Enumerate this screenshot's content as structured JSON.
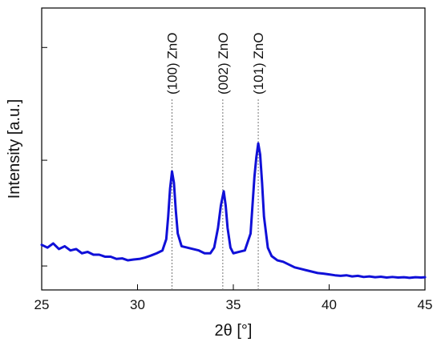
{
  "chart_data": {
    "type": "line",
    "title": "",
    "xlabel": "2θ [°]",
    "ylabel": "Intensity [a.u.]",
    "xlim": [
      25,
      45
    ],
    "ylim": [
      0,
      1
    ],
    "x_ticks": [
      25,
      30,
      35,
      40,
      45
    ],
    "x_tick_labels": [
      "25",
      "30",
      "35",
      "40",
      "45"
    ],
    "y_ticks": [
      0.085,
      0.46,
      0.86
    ],
    "y_tick_labels": [],
    "grid": false,
    "legend": "none",
    "series": [
      {
        "color": "#1010d8",
        "x": [
          25.0,
          25.3,
          25.6,
          25.9,
          26.2,
          26.5,
          26.8,
          27.1,
          27.4,
          27.7,
          28.0,
          28.3,
          28.6,
          28.9,
          29.2,
          29.5,
          29.8,
          30.1,
          30.4,
          30.7,
          31.0,
          31.3,
          31.5,
          31.6,
          31.7,
          31.8,
          31.9,
          32.0,
          32.1,
          32.3,
          32.6,
          32.9,
          33.2,
          33.5,
          33.8,
          34.0,
          34.2,
          34.35,
          34.5,
          34.6,
          34.7,
          34.85,
          35.0,
          35.3,
          35.6,
          35.9,
          36.0,
          36.1,
          36.2,
          36.3,
          36.4,
          36.5,
          36.6,
          36.8,
          37.0,
          37.3,
          37.6,
          37.9,
          38.2,
          38.5,
          38.8,
          39.1,
          39.4,
          39.7,
          40.0,
          40.3,
          40.6,
          40.9,
          41.2,
          41.5,
          41.8,
          42.1,
          42.4,
          42.7,
          43.0,
          43.3,
          43.6,
          43.9,
          44.2,
          44.5,
          44.8,
          45.0
        ],
        "y": [
          0.16,
          0.15,
          0.165,
          0.145,
          0.155,
          0.14,
          0.145,
          0.13,
          0.135,
          0.125,
          0.125,
          0.118,
          0.118,
          0.11,
          0.112,
          0.105,
          0.108,
          0.11,
          0.115,
          0.122,
          0.13,
          0.14,
          0.18,
          0.26,
          0.36,
          0.42,
          0.38,
          0.28,
          0.2,
          0.155,
          0.15,
          0.145,
          0.14,
          0.13,
          0.13,
          0.15,
          0.22,
          0.3,
          0.35,
          0.3,
          0.22,
          0.15,
          0.13,
          0.135,
          0.14,
          0.2,
          0.3,
          0.4,
          0.47,
          0.52,
          0.48,
          0.38,
          0.26,
          0.15,
          0.12,
          0.105,
          0.1,
          0.09,
          0.08,
          0.075,
          0.07,
          0.065,
          0.06,
          0.058,
          0.055,
          0.052,
          0.05,
          0.052,
          0.048,
          0.05,
          0.046,
          0.048,
          0.045,
          0.047,
          0.044,
          0.046,
          0.044,
          0.045,
          0.043,
          0.045,
          0.044,
          0.045
        ]
      }
    ],
    "annotations": [
      {
        "x": 31.8,
        "text": "(100) ZnO"
      },
      {
        "x": 34.45,
        "text": "(002) ZnO"
      },
      {
        "x": 36.3,
        "text": "(101) ZnO"
      }
    ]
  }
}
